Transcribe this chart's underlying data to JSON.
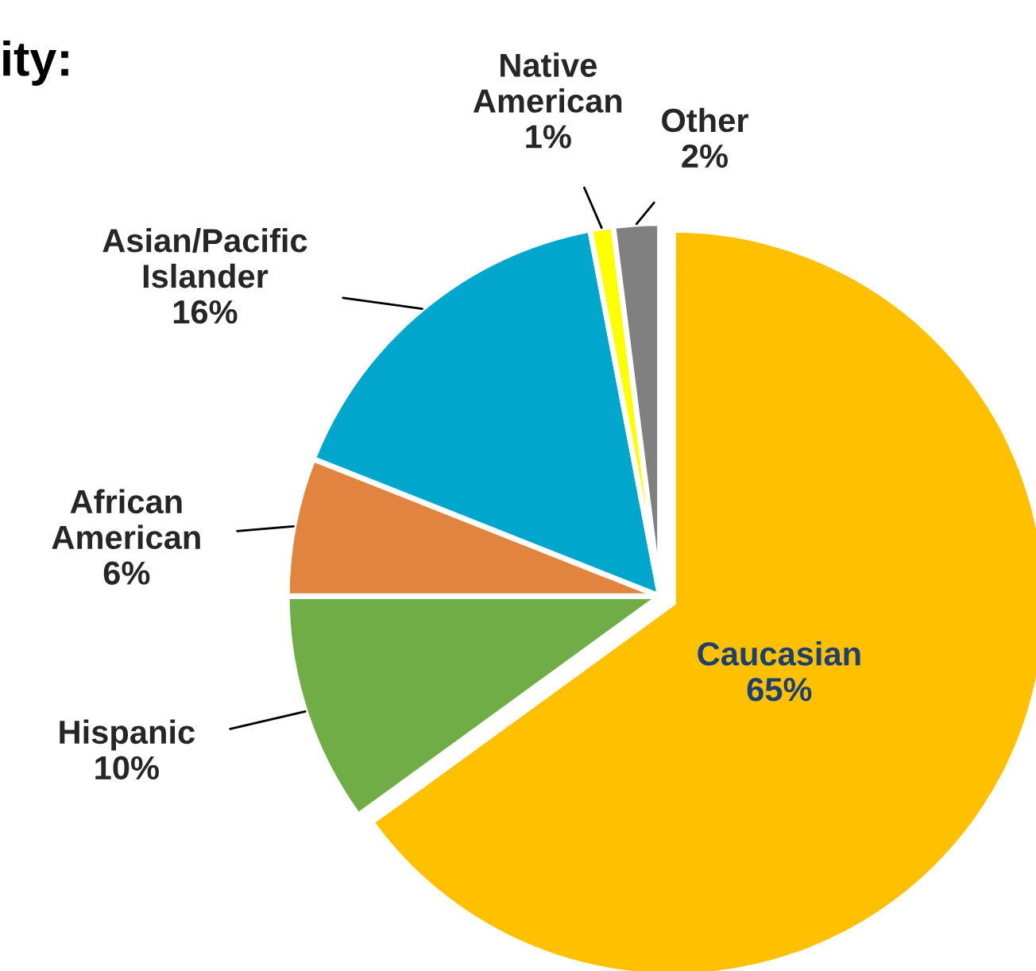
{
  "chart_data": {
    "type": "pie",
    "title": "ity:",
    "categories": [
      "Caucasian",
      "Hispanic",
      "African American",
      "Asian/Pacific Islander",
      "Native American",
      "Other"
    ],
    "values": [
      65,
      10,
      6,
      16,
      1,
      2
    ],
    "colors": [
      "#ffc000",
      "#70ad47",
      "#e0843f",
      "#00a6cc",
      "#ffff00",
      "#808080"
    ],
    "value_labels": [
      "65%",
      "10%",
      "6%",
      "16%",
      "1%",
      "2%"
    ],
    "legend": false
  }
}
